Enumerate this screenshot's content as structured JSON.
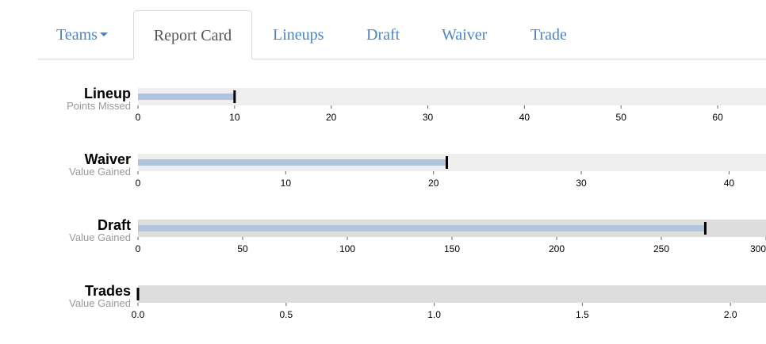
{
  "nav": {
    "tabs": [
      {
        "label": "Teams",
        "dropdown": true
      },
      {
        "label": "Report Card",
        "active": true
      },
      {
        "label": "Lineups"
      },
      {
        "label": "Draft"
      },
      {
        "label": "Waiver"
      },
      {
        "label": "Trade"
      }
    ]
  },
  "colors": {
    "link": "#4a86c5",
    "range_light": "#eeeeee",
    "range_dark": "#dddddd",
    "measure": "#b0c4de",
    "marker": "#000000"
  },
  "chart_data": [
    {
      "type": "bullet",
      "title": "Lineup",
      "subtitle": "Points Missed",
      "range": 65,
      "measure": 10,
      "marker": 10,
      "ticks": [
        0,
        10,
        20,
        30,
        40,
        50,
        60
      ],
      "tick_labels": [
        "0",
        "10",
        "20",
        "30",
        "40",
        "50",
        "60"
      ],
      "range_shade": "light"
    },
    {
      "type": "bullet",
      "title": "Waiver",
      "subtitle": "Value Gained",
      "range": 42.5,
      "measure": 20.9,
      "marker": 20.9,
      "ticks": [
        0,
        10,
        20,
        30,
        40
      ],
      "tick_labels": [
        "0",
        "10",
        "20",
        "30",
        "40"
      ],
      "range_shade": "light"
    },
    {
      "type": "bullet",
      "title": "Draft",
      "subtitle": "Value Gained",
      "range": 300,
      "measure": 271,
      "marker": 271,
      "ticks": [
        0,
        50,
        100,
        150,
        200,
        250,
        300
      ],
      "tick_labels": [
        "0",
        "50",
        "100",
        "150",
        "200",
        "250",
        "300"
      ],
      "range_shade": "dark"
    },
    {
      "type": "bullet",
      "title": "Trades",
      "subtitle": "Value Gained",
      "range": 2.12,
      "measure": 0,
      "marker": 0,
      "ticks": [
        0,
        0.5,
        1,
        1.5,
        2
      ],
      "tick_labels": [
        "0.0",
        "0.5",
        "1.0",
        "1.5",
        "2.0"
      ],
      "range_shade": "dark"
    }
  ]
}
